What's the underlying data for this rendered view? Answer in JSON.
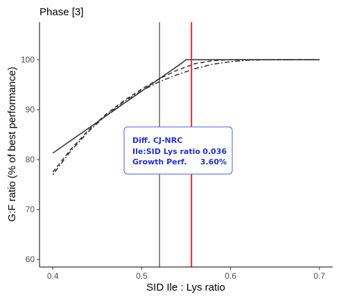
{
  "chart_data": {
    "type": "line",
    "title": "Phase [3]",
    "xlabel": "SID Ile : Lys ratio",
    "ylabel": "G:F ratio (% of best performance)",
    "xlim": [
      0.385,
      0.715
    ],
    "ylim": [
      58.5,
      107.5
    ],
    "xticks": [
      0.4,
      0.5,
      0.6,
      0.7
    ],
    "xtick_labels": [
      "0.4",
      "0.5",
      "0.6",
      "0.7"
    ],
    "yticks": [
      60,
      70,
      80,
      90,
      100
    ],
    "ytick_labels": [
      "60",
      "70",
      "80",
      "90",
      "100"
    ],
    "grid": false,
    "series": [
      {
        "style": "solid",
        "x": [
          0.4,
          0.545,
          0.55,
          0.6,
          0.65,
          0.7
        ],
        "y": [
          81.3,
          99.3,
          100,
          100,
          100,
          100
        ]
      },
      {
        "style": "dashed",
        "x": [
          0.4,
          0.42,
          0.44,
          0.46,
          0.48,
          0.5,
          0.52,
          0.54,
          0.56,
          0.58,
          0.6,
          0.65,
          0.7
        ],
        "y": [
          77.5,
          82.0,
          85.9,
          89.1,
          91.8,
          94.1,
          96.2,
          97.9,
          99.2,
          99.8,
          100,
          100,
          100
        ]
      },
      {
        "style": "dotdash",
        "x": [
          0.4,
          0.42,
          0.44,
          0.46,
          0.48,
          0.5,
          0.52,
          0.54,
          0.56,
          0.58,
          0.6,
          0.62,
          0.65,
          0.7
        ],
        "y": [
          77.0,
          81.7,
          85.6,
          88.9,
          91.6,
          93.8,
          95.6,
          97.0,
          98.2,
          99.1,
          99.6,
          99.9,
          100,
          100
        ]
      }
    ],
    "vlines": [
      {
        "x": 0.52,
        "color": "#000000"
      },
      {
        "x": 0.556,
        "color": "#e8262c"
      }
    ],
    "annotation": {
      "header": "Diff. CJ-NRC",
      "rows": [
        {
          "label": "Ile:SID Lys ratio",
          "value": "0.036"
        },
        {
          "label": "Growth Perf.",
          "value": "3.60%"
        }
      ],
      "text_color": "#1f2fd6",
      "border_color": "#4a5ee8"
    }
  }
}
